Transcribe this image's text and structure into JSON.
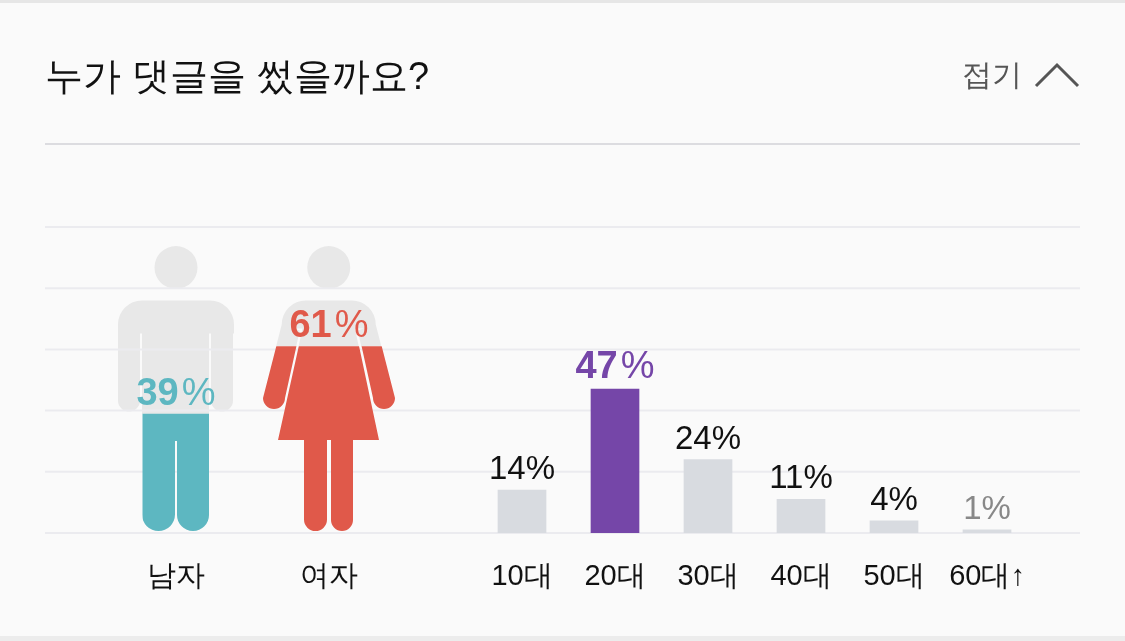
{
  "chart_data": [
    {
      "type": "bar",
      "title": "누가 댓글을 썼을까요?",
      "annotations": [
        "접기"
      ],
      "categories": [
        "남자",
        "여자"
      ],
      "values": [
        39,
        61
      ],
      "colors": [
        "#5db7c1",
        "#e0594a"
      ],
      "value_labels": [
        "39%",
        "61%"
      ],
      "ylim": [
        0,
        100
      ],
      "yticks": [
        {
          "value": 0,
          "label": null
        },
        {
          "value": 20,
          "label": null
        },
        {
          "value": 40,
          "label": null
        },
        {
          "value": 60,
          "label": null
        },
        {
          "value": 80,
          "label": null
        },
        {
          "value": 100,
          "label": null
        }
      ],
      "grid": "y",
      "tick_labels": "x"
    },
    {
      "type": "bar",
      "categories": [
        "10대",
        "20대",
        "30대",
        "40대",
        "50대",
        "60대↑"
      ],
      "values": [
        14,
        47,
        24,
        11,
        4,
        1
      ],
      "colors": [
        "#d8dbe0",
        "#7546a8",
        "#d8dbe0",
        "#d8dbe0",
        "#d8dbe0",
        "#d8dbe0"
      ],
      "value_labels": [
        "14%",
        "47%",
        "24%",
        "11%",
        "4%",
        "1%"
      ],
      "ylim": [
        0,
        100
      ],
      "yticks": [
        {
          "value": 0,
          "label": null
        },
        {
          "value": 20,
          "label": null
        },
        {
          "value": 40,
          "label": null
        },
        {
          "value": 60,
          "label": null
        },
        {
          "value": 80,
          "label": null
        },
        {
          "value": 100,
          "label": null
        }
      ],
      "grid": "y",
      "tick_labels": "x"
    }
  ]
}
